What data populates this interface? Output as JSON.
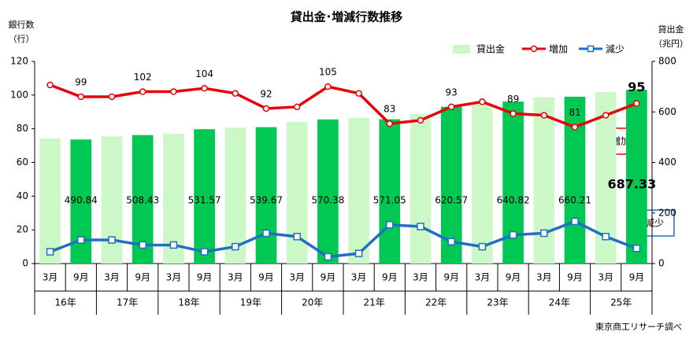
{
  "chart_data": {
    "type": "bar-line",
    "title": "貸出金･増減行数推移",
    "ylabel": [
      "銀行数",
      "（行）"
    ],
    "y2label": [
      "貸出金",
      "（兆円）"
    ],
    "categories": [
      "3月",
      "9月",
      "3月",
      "9月",
      "3月",
      "9月",
      "3月",
      "9月",
      "3月",
      "9月",
      "3月",
      "9月",
      "3月",
      "9月",
      "3月",
      "9月",
      "3月",
      "9月",
      "3月",
      "9月"
    ],
    "groups": [
      "16年",
      "17年",
      "18年",
      "19年",
      "20年",
      "21年",
      "22年",
      "23年",
      "24年",
      "25年"
    ],
    "ylim": [
      0,
      120
    ],
    "yticks": [
      0,
      20,
      40,
      60,
      80,
      100,
      120
    ],
    "y2lim": [
      0,
      800
    ],
    "y2ticks": [
      0,
      200,
      400,
      600,
      800
    ],
    "series": [
      {
        "name": "貸出金",
        "type": "bar",
        "axis": "y2",
        "colors": [
          "#ccf8c8",
          "#00c853"
        ],
        "labels_on": "9月",
        "values": [
          495,
          490.84,
          503,
          508.43,
          514,
          531.57,
          538,
          539.67,
          560,
          570.38,
          576,
          571.05,
          592,
          620.57,
          632,
          640.82,
          657,
          660.21,
          679,
          687.33
        ]
      },
      {
        "name": "増加",
        "type": "line",
        "color": "#e8000b",
        "marker": "circle",
        "labels_on": "9月",
        "values": [
          106,
          99,
          99,
          102,
          102,
          104,
          101,
          92,
          93,
          105,
          101,
          83,
          85,
          93,
          96,
          89,
          88,
          81,
          88,
          95
        ]
      },
      {
        "name": "減少",
        "type": "line",
        "color": "#1f6fc5",
        "marker": "square",
        "values": [
          7,
          14,
          14,
          11,
          11,
          7,
          10,
          18,
          16,
          4,
          6,
          23,
          22,
          13,
          10,
          17,
          18,
          25,
          16,
          9
        ]
      }
    ],
    "annotations": [
      "増加",
      "減少"
    ],
    "source": "東京商工リサーチ調べ"
  }
}
